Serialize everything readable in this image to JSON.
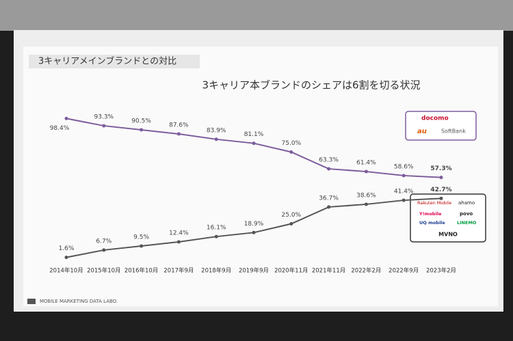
{
  "header": "3キャリアメインブランドとの対比",
  "footer": "MOBILE MARKETING DATA LABO.",
  "brands": {
    "carriers": [
      "docomo",
      "au",
      "SoftBank"
    ],
    "others": [
      "Rakuten Mobile",
      "ahamo",
      "Y!mobile",
      "povo",
      "UQ mobile",
      "LINEMO"
    ],
    "others_label": "MVNO"
  },
  "chart_data": {
    "type": "line",
    "title": "3キャリア本ブランドのシェアは6割を切る状況",
    "categories": [
      "2014年10月",
      "2015年10月",
      "2016年10月",
      "2017年9月",
      "2018年9月",
      "2019年9月",
      "2020年11月",
      "2021年11月",
      "2022年2月",
      "2022年9月",
      "2023年2月"
    ],
    "ylim": [
      0,
      100
    ],
    "series": [
      {
        "name": "3キャリア本ブランド",
        "color": "#7d5c9c",
        "values": [
          98.4,
          93.3,
          90.5,
          87.6,
          83.9,
          81.1,
          75.0,
          63.3,
          61.4,
          58.6,
          57.3
        ],
        "value_labels": [
          "98.4%",
          "93.3%",
          "90.5%",
          "87.6%",
          "83.9%",
          "81.1%",
          "75.0%",
          "63.3%",
          "61.4%",
          "58.6%",
          "57.3%"
        ]
      },
      {
        "name": "MVNO",
        "color": "#555555",
        "values": [
          1.6,
          6.7,
          9.5,
          12.4,
          16.1,
          18.9,
          25.0,
          36.7,
          38.6,
          41.4,
          42.7
        ],
        "value_labels": [
          "1.6%",
          "6.7%",
          "9.5%",
          "12.4%",
          "16.1%",
          "18.9%",
          "25.0%",
          "36.7%",
          "38.6%",
          "41.4%",
          "42.7%"
        ]
      }
    ]
  }
}
